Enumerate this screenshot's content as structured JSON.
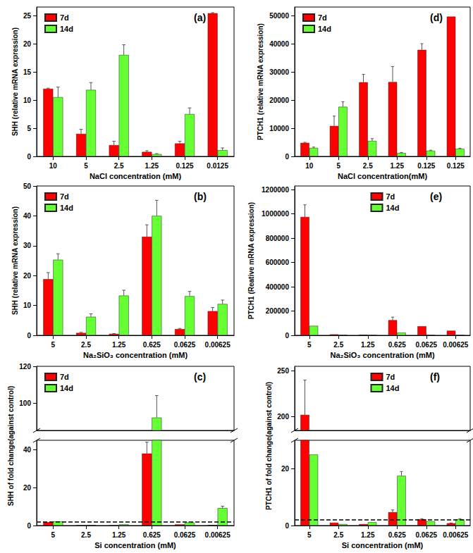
{
  "chart_data": [
    {
      "type": "bar",
      "title": "(a)",
      "x_label": "NaCl concentration (mM)",
      "y_label": "SHH (relative mRNA expression)",
      "categories": [
        "10",
        "5",
        "2.5",
        "1.25",
        "0.125",
        "0.0125"
      ],
      "series": [
        {
          "name": "7d",
          "color": "#ff0000",
          "values": [
            12,
            4,
            2,
            0.8,
            2.3,
            25.4
          ],
          "errors": [
            0.1,
            0.8,
            0.7,
            0.2,
            0.4,
            0.1
          ]
        },
        {
          "name": "14d",
          "color": "#66ff33",
          "values": [
            10.5,
            11.8,
            18,
            0.4,
            7.5,
            1.1
          ],
          "errors": [
            1.8,
            1.3,
            1.8,
            0.1,
            1.1,
            0.4
          ]
        }
      ],
      "ylim": [
        0,
        26.5
      ],
      "yticks": [
        0,
        5,
        10,
        15,
        20,
        25
      ],
      "grid": false,
      "legend": "upper left"
    },
    {
      "type": "bar",
      "title": "(b)",
      "x_label": "Na₂SiO₃ concentration (mM)",
      "y_label": "SHH (relative mRNA expression)",
      "categories": [
        "5",
        "2.5",
        "1.25",
        "0.625",
        "0.0625",
        "0.00625"
      ],
      "series": [
        {
          "name": "7d",
          "color": "#ff0000",
          "values": [
            18.8,
            0.8,
            0.5,
            33,
            2.1,
            8.1
          ],
          "errors": [
            2.2,
            0.2,
            0.1,
            4,
            0.2,
            1.2
          ]
        },
        {
          "name": "14d",
          "color": "#66ff33",
          "values": [
            25.3,
            6.2,
            13.3,
            40,
            13.1,
            10.5
          ],
          "errors": [
            2,
            1,
            1.8,
            5.2,
            1.6,
            1.3
          ]
        }
      ],
      "ylim": [
        0,
        50
      ],
      "yticks": [
        0,
        10,
        20,
        30,
        40,
        50
      ],
      "grid": false,
      "legend": "upper left"
    },
    {
      "type": "bar",
      "title": "(c)",
      "x_label": "Si concentration (mM)",
      "y_label": "SHH of fold change(against control)",
      "categories": [
        "5",
        "2.5",
        "1.25",
        "0.625",
        "0.0625",
        "0.00625"
      ],
      "series": [
        {
          "name": "7d",
          "color": "#ff0000",
          "values": [
            1.8,
            0.1,
            0.1,
            38,
            0.6,
            0.3
          ],
          "errors": [
            0,
            0,
            0,
            6,
            0,
            0
          ]
        },
        {
          "name": "14d",
          "color": "#66ff33",
          "values": [
            2.2,
            0.3,
            0.6,
            92,
            1.6,
            9.2
          ],
          "errors": [
            0,
            0,
            0,
            12,
            0.2,
            1
          ]
        }
      ],
      "ylim": [
        0,
        120
      ],
      "ybreak": [
        45,
        85
      ],
      "yticks": [
        0,
        20,
        40,
        100,
        120
      ],
      "reference_line": 2,
      "grid": false,
      "legend": "upper left"
    },
    {
      "type": "bar",
      "title": "(d)",
      "x_label": "NaCl concentration(mM)",
      "y_label": "PTCH1 (relative mRNA expression)",
      "categories": [
        "10",
        "5",
        "2.5",
        "1.25",
        "0.125",
        "0.125"
      ],
      "series": [
        {
          "name": "7d",
          "color": "#ff0000",
          "values": [
            4800,
            10800,
            26300,
            26400,
            37800,
            49600
          ],
          "errors": [
            200,
            3500,
            2800,
            5500,
            2200,
            0
          ]
        },
        {
          "name": "14d",
          "color": "#66ff33",
          "values": [
            3000,
            17600,
            5500,
            1200,
            2000,
            2700
          ],
          "errors": [
            300,
            1800,
            800,
            200,
            200,
            200
          ]
        }
      ],
      "ylim": [
        0,
        53000
      ],
      "yticks": [
        0,
        10000,
        20000,
        30000,
        40000,
        50000
      ],
      "grid": false,
      "legend": "upper left"
    },
    {
      "type": "bar",
      "title": "(e)",
      "x_label": "Na₂SiO₃ concentration (mM)",
      "y_label": "PTCH1 (Reative mRNA expression)",
      "categories": [
        "5",
        "2.5",
        "1.25",
        "0.625",
        "0.0625",
        "0.00625"
      ],
      "series": [
        {
          "name": "7d",
          "color": "#ff0000",
          "values": [
            975000,
            8000,
            5000,
            125000,
            75000,
            38000
          ],
          "errors": [
            100000,
            0,
            0,
            25000,
            0,
            0
          ]
        },
        {
          "name": "14d",
          "color": "#66ff33",
          "values": [
            78000,
            3000,
            2000,
            22000,
            2000,
            2000
          ],
          "errors": [
            0,
            0,
            0,
            0,
            0,
            0
          ]
        }
      ],
      "ylim": [
        0,
        1230000
      ],
      "yticks": [
        0,
        200000,
        400000,
        600000,
        800000,
        1000000,
        1200000
      ],
      "grid": false,
      "legend": "upper center"
    },
    {
      "type": "bar",
      "title": "(f)",
      "x_label": "Si concentration (mM)",
      "y_label": "PTCH1 of fold change(against control)",
      "categories": [
        "5",
        "2.5",
        "1.25",
        "0.625",
        "0.0625",
        "0.00625"
      ],
      "series": [
        {
          "name": "7d",
          "color": "#ff0000",
          "values": [
            202,
            1,
            0.5,
            4.7,
            2.2,
            0.8
          ],
          "errors": [
            38,
            0,
            0,
            0.8,
            0.2,
            0.1
          ]
        },
        {
          "name": "14d",
          "color": "#66ff33",
          "values": [
            25,
            0.5,
            1.2,
            17.5,
            1.5,
            2.2
          ],
          "errors": [
            0,
            0,
            0,
            1.5,
            0,
            0.2
          ]
        }
      ],
      "ylim": [
        0,
        255
      ],
      "ybreak": [
        30,
        185
      ],
      "yticks": [
        0,
        20,
        200,
        250
      ],
      "reference_line": 2,
      "grid": false,
      "legend": "upper center"
    }
  ]
}
